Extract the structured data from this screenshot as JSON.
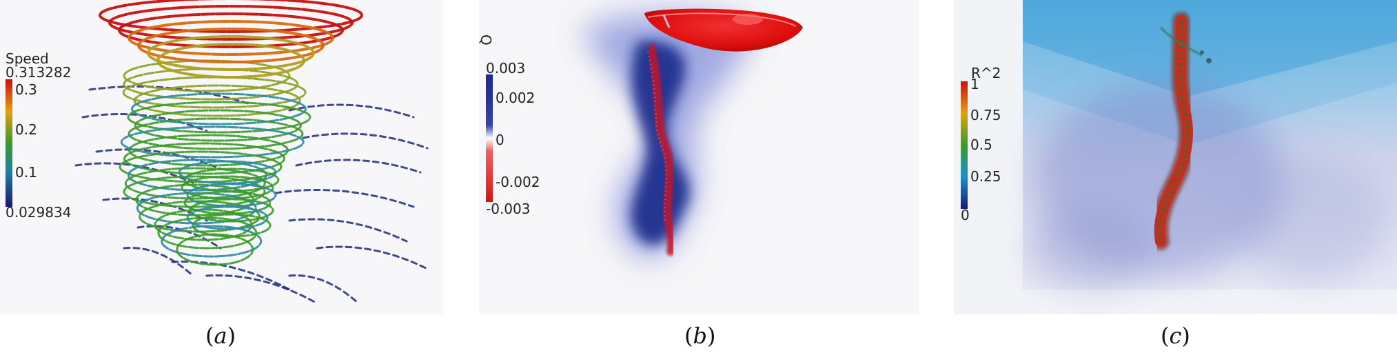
{
  "panels": [
    {
      "caption": "a",
      "legend": {
        "title": "Speed",
        "max": "0.313282",
        "ticks": [
          "0.3",
          "0.2",
          "0.1"
        ],
        "min": "0.029834",
        "colors": [
          "#c81010",
          "#e0a010",
          "#3a9a2a",
          "#2080a0",
          "#1a1a70"
        ]
      }
    },
    {
      "caption": "b",
      "legend": {
        "title": "Q",
        "ticks": [
          "0.003",
          "0.002",
          "0",
          "-0.002",
          "-0.003"
        ],
        "colors": [
          "#1a2a8a",
          "#ffffff",
          "#e01010"
        ]
      }
    },
    {
      "caption": "c",
      "legend": {
        "title": "R^2",
        "ticks": [
          "1",
          "0.75",
          "0.5",
          "0.25",
          "0"
        ],
        "colors": [
          "#c81010",
          "#e0a010",
          "#3a9a2a",
          "#1a8fd0",
          "#1a1a70"
        ]
      }
    }
  ]
}
